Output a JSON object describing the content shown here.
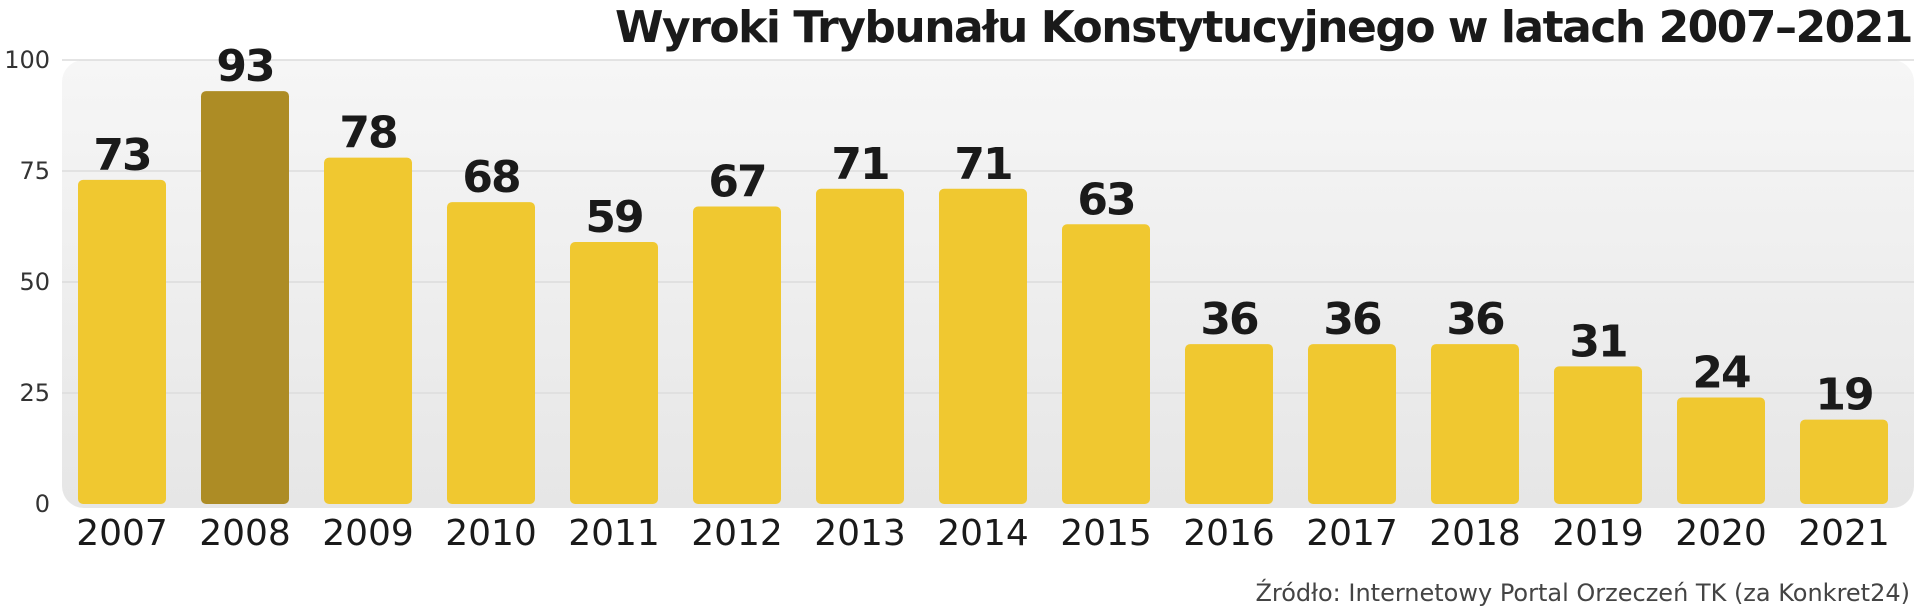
{
  "chart_data": {
    "type": "bar",
    "title": "Wyroki Trybunału Konstytucyjnego w latach 2007–2021",
    "categories": [
      "2007",
      "2008",
      "2009",
      "2010",
      "2011",
      "2012",
      "2013",
      "2014",
      "2015",
      "2016",
      "2017",
      "2018",
      "2019",
      "2020",
      "2021"
    ],
    "values": [
      73,
      93,
      78,
      68,
      59,
      67,
      71,
      71,
      63,
      36,
      36,
      36,
      31,
      24,
      19
    ],
    "ylim": [
      0,
      100
    ],
    "yticks": [
      0,
      25,
      50,
      75,
      100
    ],
    "grid": true,
    "highlight_category": "2008",
    "colors": {
      "bar": "#F0C830",
      "highlight": "#AD8C25",
      "plot_background": "#EFEFEF",
      "grid": "#DCDCDC"
    }
  },
  "source": "Źródło: Internetowy Portal Orzeczeń TK (za Konkret24)"
}
